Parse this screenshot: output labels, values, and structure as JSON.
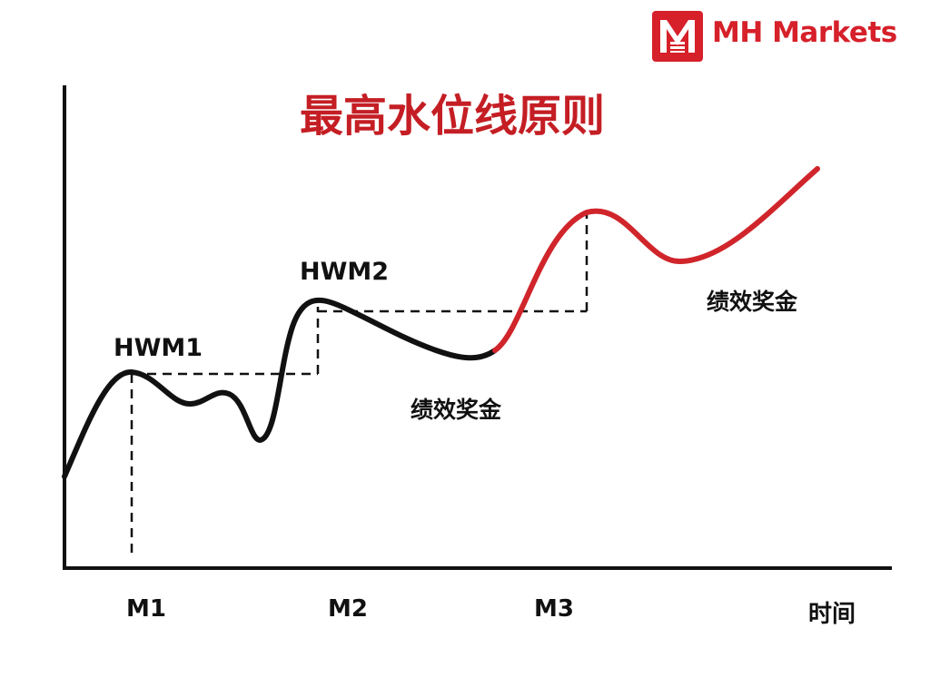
{
  "brand": {
    "name": "MH Markets",
    "color": "#d6202a"
  },
  "title": "最高水位线原则",
  "hwm_labels": [
    "HWM1",
    "HWM2"
  ],
  "bonus_labels": [
    "绩效奖金",
    "绩效奖金"
  ],
  "x_axis": {
    "ticks": [
      "M1",
      "M2",
      "M3"
    ],
    "label": "时间"
  },
  "colors": {
    "title": "#c41e24",
    "curve": "#111111",
    "highlight": "#d0252b"
  }
}
